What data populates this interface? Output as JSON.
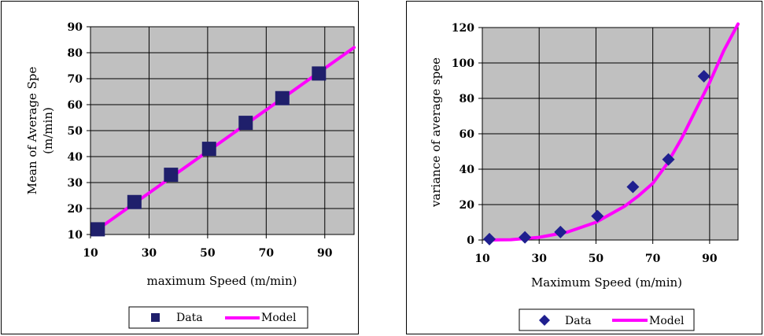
{
  "colors": {
    "plot_bg": "#c0c0c0",
    "grid": "#000000",
    "data_left": "#1f1f6b",
    "data_right": "#1f1f8f",
    "model": "#ff00ff"
  },
  "chart_data": [
    {
      "type": "scatter",
      "xlabel": "maximum Speed (m/min)",
      "ylabel": "Mean of Average Spe\n(m/min)",
      "xlim": [
        10,
        100
      ],
      "ylim": [
        10,
        90
      ],
      "x_ticks": [
        10,
        30,
        50,
        70,
        90
      ],
      "y_ticks": [
        10,
        20,
        30,
        40,
        50,
        60,
        70,
        80,
        90
      ],
      "grid": true,
      "legend_position": "bottom",
      "series": [
        {
          "name": "Data",
          "marker": "square",
          "icon": "square-marker-icon",
          "x": [
            12.5,
            25,
            37.5,
            50.5,
            63,
            75.5,
            88
          ],
          "y": [
            12,
            22.5,
            33,
            43,
            53,
            62.5,
            72
          ]
        },
        {
          "name": "Model",
          "line": true,
          "x": [
            12.5,
            100
          ],
          "y": [
            12,
            82
          ]
        }
      ]
    },
    {
      "type": "scatter",
      "xlabel": "Maximum Speed (m/min)",
      "ylabel": "variance of average spee",
      "xlim": [
        10,
        100
      ],
      "ylim": [
        0,
        120
      ],
      "x_ticks": [
        10,
        30,
        50,
        70,
        90
      ],
      "y_ticks": [
        0,
        20,
        40,
        60,
        80,
        100,
        120
      ],
      "grid": true,
      "legend_position": "bottom",
      "series": [
        {
          "name": "Data",
          "marker": "diamond",
          "icon": "diamond-marker-icon",
          "x": [
            12.5,
            25,
            37.5,
            50.5,
            63,
            75.5,
            88
          ],
          "y": [
            0.5,
            1.5,
            4.5,
            13.5,
            30,
            45.5,
            92.5
          ]
        },
        {
          "name": "Model",
          "line": true,
          "x": [
            12.5,
            20,
            30,
            40,
            50,
            60,
            65,
            70,
            75,
            80,
            85,
            90,
            95,
            100
          ],
          "y": [
            0,
            0.2,
            1.5,
            4.5,
            10,
            19,
            25,
            32,
            43,
            57,
            73,
            89,
            107,
            122
          ]
        }
      ]
    }
  ]
}
